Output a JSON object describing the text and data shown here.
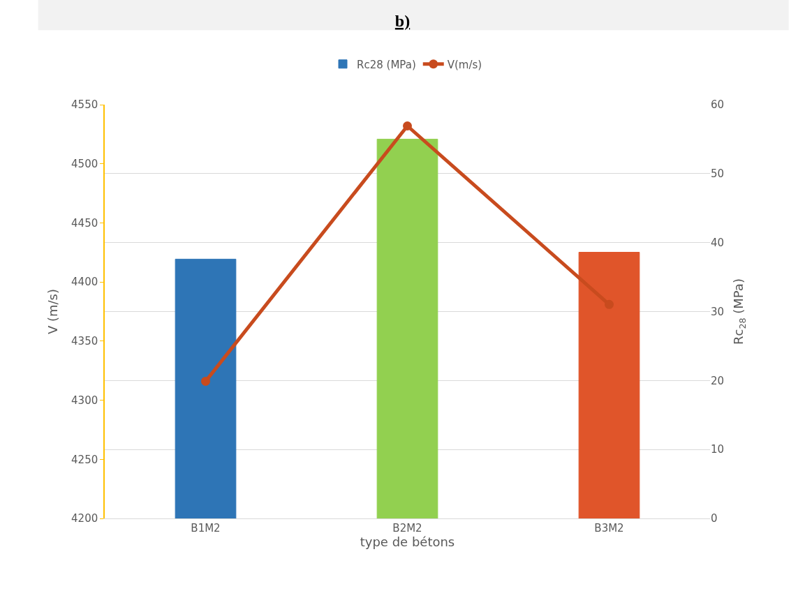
{
  "chart_data": {
    "type": "bar",
    "title": "b)",
    "xlabel": "type de bétons",
    "ylabel": "V (m/s)",
    "y2label": "Rc$_{28}$ (MPa)",
    "categories": [
      "B1M2",
      "B2M2",
      "B3M2"
    ],
    "series": [
      {
        "name": "Rc28 (MPa)",
        "axis": "y2",
        "colors": [
          "#2e75b6",
          "#92d050",
          "#e0552a"
        ],
        "values": [
          37.6,
          55.0,
          38.6
        ]
      },
      {
        "name": "V(m/s)",
        "type": "line",
        "axis": "y",
        "color": "#c84b1e",
        "marker": "circle",
        "values": [
          4316,
          4532,
          4381
        ]
      }
    ],
    "ylim": [
      4200,
      4550
    ],
    "yticks": [
      4200,
      4250,
      4300,
      4350,
      4400,
      4450,
      4500,
      4550
    ],
    "y2lim": [
      0,
      60
    ],
    "y2ticks": [
      0,
      10,
      20,
      30,
      40,
      50,
      60
    ],
    "grid": "y",
    "legend": "top"
  }
}
